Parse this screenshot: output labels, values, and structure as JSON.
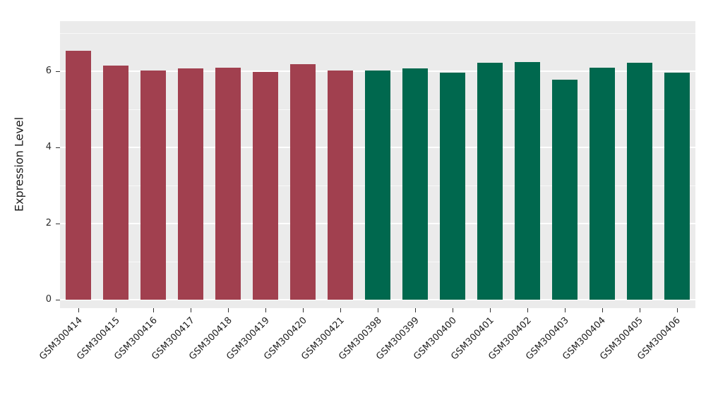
{
  "chart_data": {
    "type": "bar",
    "title": "",
    "xlabel": "",
    "ylabel": "Expression Level",
    "ylim": [
      0,
      7.3
    ],
    "yticks": [
      0,
      2,
      4,
      6
    ],
    "minor_gridlines": [
      1,
      3,
      5,
      7
    ],
    "grid": true,
    "legend": "none",
    "background_color": "#ffffff",
    "panel_background": "#ebebeb",
    "gridline_color": "#ffffff",
    "categories": [
      "GSM300414",
      "GSM300415",
      "GSM300416",
      "GSM300417",
      "GSM300418",
      "GSM300419",
      "GSM300420",
      "GSM300421",
      "GSM300398",
      "GSM300399",
      "GSM300400",
      "GSM300401",
      "GSM300402",
      "GSM300403",
      "GSM300404",
      "GSM300405",
      "GSM300406"
    ],
    "values": [
      6.54,
      6.15,
      6.02,
      6.07,
      6.1,
      5.98,
      6.19,
      6.01,
      6.02,
      6.07,
      5.97,
      6.22,
      6.24,
      5.78,
      6.09,
      6.22,
      5.96
    ],
    "bar_colors": [
      "#a1404f",
      "#a1404f",
      "#a1404f",
      "#a1404f",
      "#a1404f",
      "#a1404f",
      "#a1404f",
      "#a1404f",
      "#00684e",
      "#00684e",
      "#00684e",
      "#00684e",
      "#00684e",
      "#00684e",
      "#00684e",
      "#00684e",
      "#00684e"
    ],
    "group_colors": {
      "left_group": "#a1404f",
      "right_group": "#00684e"
    }
  }
}
